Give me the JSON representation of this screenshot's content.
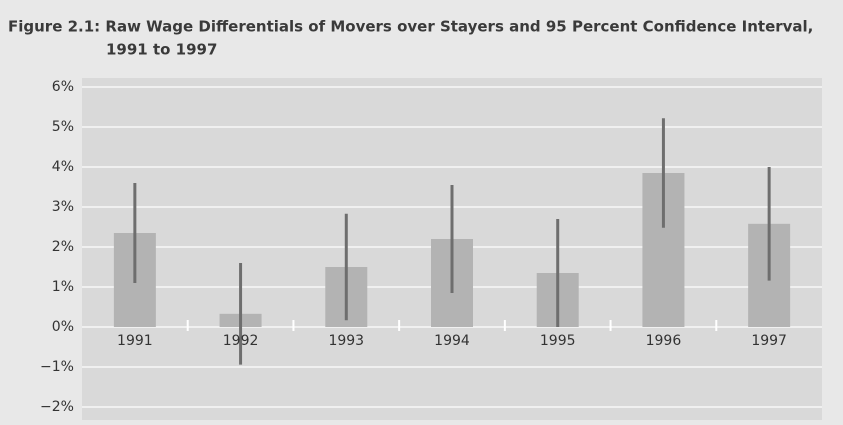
{
  "chart_data": {
    "type": "bar",
    "title": "Figure 2.1: Raw Wage Differentials of Movers over Stayers and 95 Percent Confidence Interval,",
    "subtitle": "1991 to 1997",
    "categories": [
      "1991",
      "1992",
      "1993",
      "1994",
      "1995",
      "1996",
      "1997"
    ],
    "values": [
      2.35,
      0.33,
      1.5,
      2.2,
      1.35,
      3.85,
      2.58
    ],
    "errors": [
      1.25,
      1.27,
      1.33,
      1.35,
      1.35,
      1.37,
      1.42
    ],
    "color": "#b3b3b3",
    "error_color": "#6e6e6e",
    "ylim": [
      -2,
      6
    ],
    "yticks": [
      {
        "value": -2,
        "label": "−2%"
      },
      {
        "value": -1,
        "label": "−1%"
      },
      {
        "value": 0,
        "label": "0%"
      },
      {
        "value": 1,
        "label": "1%"
      },
      {
        "value": 2,
        "label": "2%"
      },
      {
        "value": 3,
        "label": "3%"
      },
      {
        "value": 4,
        "label": "4%"
      },
      {
        "value": 5,
        "label": "5%"
      },
      {
        "value": 6,
        "label": "6%"
      }
    ],
    "grid": true
  }
}
